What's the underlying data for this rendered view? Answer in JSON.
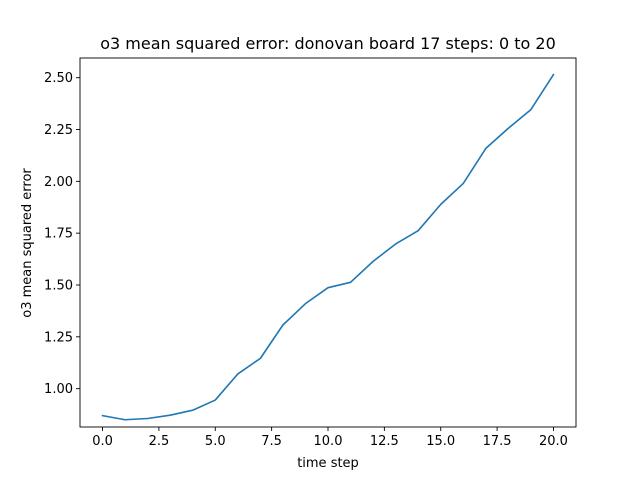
{
  "chart_data": {
    "type": "line",
    "title": "o3 mean squared error: donovan board 17 steps: 0 to 20",
    "xlabel": "time step",
    "ylabel": "o3 mean squared error",
    "xlim": [
      -1.0,
      21.0
    ],
    "ylim": [
      0.815,
      2.595
    ],
    "xticks": [
      0.0,
      2.5,
      5.0,
      7.5,
      10.0,
      12.5,
      15.0,
      17.5,
      20.0
    ],
    "xtick_labels": [
      "0.0",
      "2.5",
      "5.0",
      "7.5",
      "10.0",
      "12.5",
      "15.0",
      "17.5",
      "20.0"
    ],
    "yticks": [
      1.0,
      1.25,
      1.5,
      1.75,
      2.0,
      2.25,
      2.5
    ],
    "ytick_labels": [
      "1.00",
      "1.25",
      "1.50",
      "1.75",
      "2.00",
      "2.25",
      "2.50"
    ],
    "grid": false,
    "series": [
      {
        "color": "#1f77b4",
        "x": [
          0,
          1,
          2,
          3,
          4,
          5,
          6,
          7,
          8,
          9,
          10,
          11,
          12,
          13,
          14,
          15,
          16,
          17,
          18,
          19,
          20
        ],
        "y": [
          0.87,
          0.85,
          0.856,
          0.872,
          0.896,
          0.945,
          1.071,
          1.146,
          1.307,
          1.41,
          1.487,
          1.513,
          1.614,
          1.698,
          1.762,
          1.889,
          1.99,
          2.159,
          2.256,
          2.346,
          2.515
        ]
      }
    ]
  }
}
